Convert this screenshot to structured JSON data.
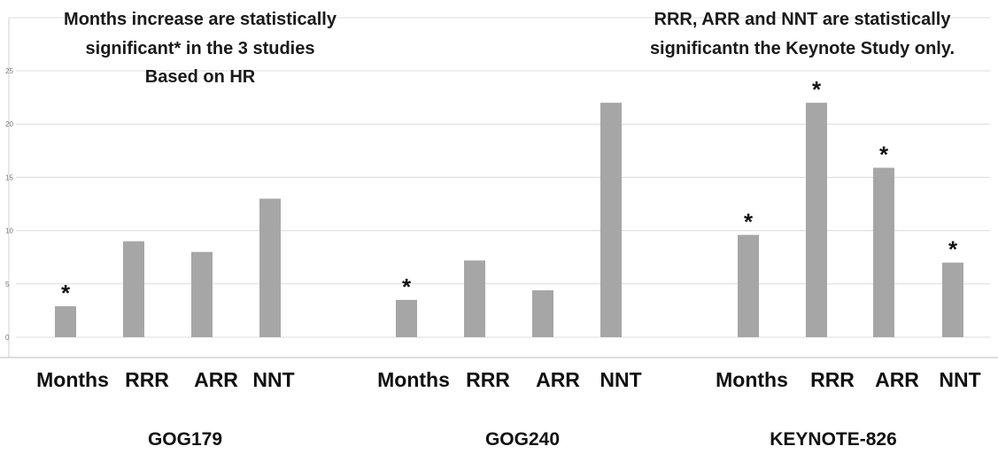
{
  "chart_data": {
    "type": "bar",
    "title": "",
    "xlabel": "",
    "ylabel": "",
    "ylim": [
      0,
      25
    ],
    "yticks": [
      0,
      5,
      10,
      15,
      20,
      25
    ],
    "grid": true,
    "legend": "none",
    "bar_color": "#a6a6a6",
    "groups": [
      {
        "name": "GOG179",
        "categories": [
          "Months",
          "RRR",
          "ARR",
          "NNT"
        ],
        "values": [
          2.9,
          9.0,
          8.0,
          13.0
        ],
        "significant": [
          true,
          false,
          false,
          false
        ]
      },
      {
        "name": "GOG240",
        "categories": [
          "Months",
          "RRR",
          "ARR",
          "NNT"
        ],
        "values": [
          3.5,
          7.2,
          4.4,
          22.0
        ],
        "significant": [
          true,
          false,
          false,
          false
        ]
      },
      {
        "name": "KEYNOTE-826",
        "categories": [
          "Months",
          "RRR",
          "ARR",
          "NNT"
        ],
        "values": [
          9.6,
          22.0,
          15.9,
          7.0
        ],
        "significant": [
          true,
          true,
          true,
          true
        ]
      }
    ],
    "significance_marker": "*",
    "annotations": [
      [
        "Months increase are statistically",
        "significant* in the 3 studies",
        "Based on HR"
      ],
      [
        "RRR, ARR and NNT are statistically",
        "significantn the Keynote Study only."
      ]
    ]
  }
}
